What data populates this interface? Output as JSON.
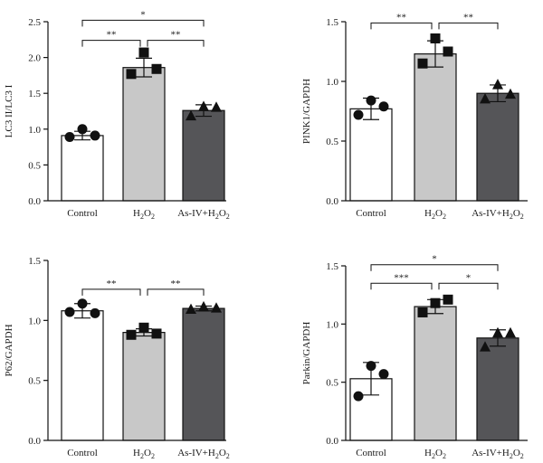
{
  "chart_data": [
    {
      "type": "bar",
      "panel": "top-left",
      "ylabel": "LC3 II/LC3 I",
      "ylim": [
        0,
        2.5
      ],
      "yticks": [
        "0.0",
        "0.5",
        "1.0",
        "1.5",
        "2.0",
        "2.5"
      ],
      "categories": [
        {
          "label": "Control"
        },
        {
          "label": "H",
          "sub": "2",
          "label2": "O",
          "sub2": "2"
        },
        {
          "label": "As-IV+H",
          "sub": "2",
          "label2": "O",
          "sub2": "2"
        }
      ],
      "values": [
        0.91,
        1.86,
        1.26
      ],
      "errors": [
        0.06,
        0.13,
        0.08
      ],
      "points": [
        [
          0.89,
          1.0,
          0.91
        ],
        [
          1.77,
          2.07,
          1.84
        ],
        [
          1.18,
          1.31,
          1.3
        ]
      ],
      "markers": [
        "circle",
        "square",
        "triangle"
      ],
      "colors": [
        "#ffffff",
        "#c8c8c8",
        "#555558"
      ],
      "significance": [
        {
          "from": 0,
          "to": 1,
          "label": "**",
          "y": 2.24
        },
        {
          "from": 1,
          "to": 2,
          "label": "**",
          "y": 2.24
        },
        {
          "from": 0,
          "to": 2,
          "label": "*",
          "y": 2.52
        }
      ]
    },
    {
      "type": "bar",
      "panel": "top-right",
      "ylabel": "PINK1/GAPDH",
      "ylim": [
        0,
        1.5
      ],
      "yticks": [
        "0.0",
        "0.5",
        "1.0",
        "1.5"
      ],
      "categories": [
        {
          "label": "Control"
        },
        {
          "label": "H",
          "sub": "2",
          "label2": "O",
          "sub2": "2"
        },
        {
          "label": "As-IV+H",
          "sub": "2",
          "label2": "O",
          "sub2": "2"
        }
      ],
      "values": [
        0.77,
        1.23,
        0.9
      ],
      "errors": [
        0.09,
        0.11,
        0.07
      ],
      "points": [
        [
          0.72,
          0.84,
          0.79
        ],
        [
          1.15,
          1.36,
          1.25
        ],
        [
          0.85,
          0.97,
          0.89
        ]
      ],
      "markers": [
        "circle",
        "square",
        "triangle"
      ],
      "colors": [
        "#ffffff",
        "#c8c8c8",
        "#555558"
      ],
      "significance": [
        {
          "from": 0,
          "to": 1,
          "label": "**",
          "y": 1.49
        },
        {
          "from": 1,
          "to": 2,
          "label": "**",
          "y": 1.49
        }
      ]
    },
    {
      "type": "bar",
      "panel": "bottom-left",
      "ylabel": "P62/GAPDH",
      "ylim": [
        0,
        1.5
      ],
      "yticks": [
        "0.0",
        "0.5",
        "1.0",
        "1.5"
      ],
      "categories": [
        {
          "label": "Control"
        },
        {
          "label": "H",
          "sub": "2",
          "label2": "O",
          "sub2": "2"
        },
        {
          "label": "As-IV+H",
          "sub": "2",
          "label2": "O",
          "sub2": "2"
        }
      ],
      "values": [
        1.08,
        0.9,
        1.1
      ],
      "errors": [
        0.06,
        0.03,
        0.02
      ],
      "points": [
        [
          1.07,
          1.14,
          1.06
        ],
        [
          0.88,
          0.94,
          0.89
        ],
        [
          1.09,
          1.11,
          1.1
        ]
      ],
      "markers": [
        "circle",
        "square",
        "triangle"
      ],
      "colors": [
        "#ffffff",
        "#c8c8c8",
        "#555558"
      ],
      "significance": [
        {
          "from": 0,
          "to": 1,
          "label": "**",
          "y": 1.26
        },
        {
          "from": 1,
          "to": 2,
          "label": "**",
          "y": 1.26
        }
      ]
    },
    {
      "type": "bar",
      "panel": "bottom-right",
      "ylabel": "Parkin/GAPDH",
      "ylim": [
        0,
        1.5
      ],
      "yticks": [
        "0.0",
        "0.5",
        "1.0",
        "1.5"
      ],
      "categories": [
        {
          "label": "Control"
        },
        {
          "label": "H",
          "sub": "2",
          "label2": "O",
          "sub2": "2"
        },
        {
          "label": "As-IV+H",
          "sub": "2",
          "label2": "O",
          "sub2": "2"
        }
      ],
      "values": [
        0.53,
        1.15,
        0.88
      ],
      "errors": [
        0.14,
        0.06,
        0.07
      ],
      "points": [
        [
          0.38,
          0.64,
          0.57
        ],
        [
          1.1,
          1.18,
          1.21
        ],
        [
          0.8,
          0.92,
          0.92
        ]
      ],
      "markers": [
        "circle",
        "square",
        "triangle"
      ],
      "colors": [
        "#ffffff",
        "#c8c8c8",
        "#555558"
      ],
      "significance": [
        {
          "from": 0,
          "to": 1,
          "label": "***",
          "y": 1.35
        },
        {
          "from": 1,
          "to": 2,
          "label": "*",
          "y": 1.35
        },
        {
          "from": 0,
          "to": 2,
          "label": "*",
          "y": 1.51
        }
      ]
    }
  ]
}
